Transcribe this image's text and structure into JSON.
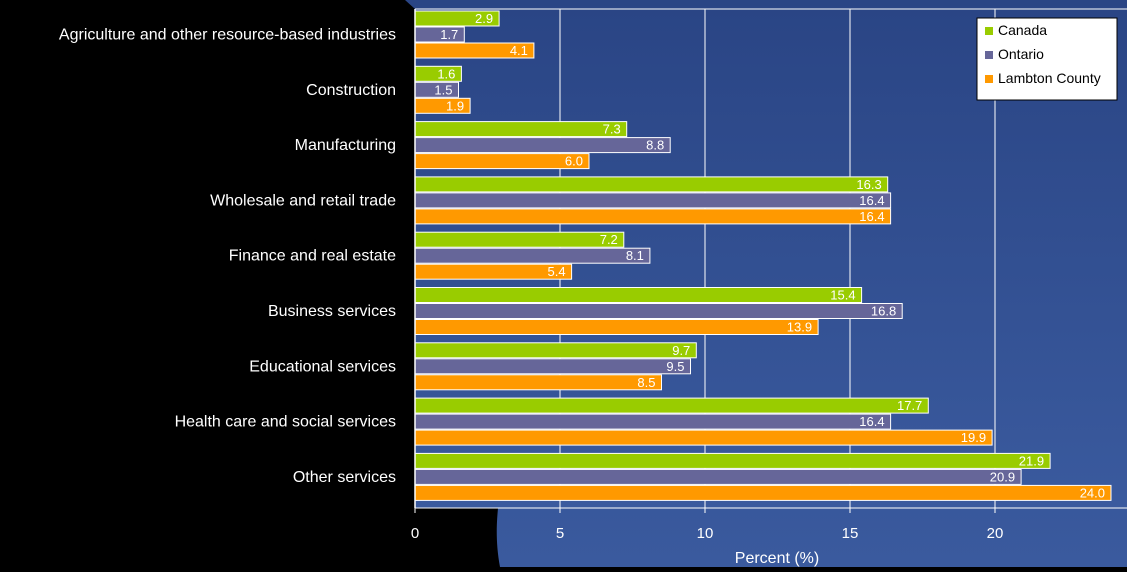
{
  "chart_data": {
    "type": "bar",
    "orientation": "horizontal",
    "title": "",
    "xlabel": "Percent (%)",
    "ylabel": "",
    "xlim": [
      0,
      24.5
    ],
    "x_ticks": [
      0,
      5,
      10,
      15,
      20
    ],
    "grid": true,
    "legend_position": "top-right",
    "categories": [
      "Agriculture and other resource-based industries",
      "Construction",
      "Manufacturing",
      "Wholesale and retail trade",
      "Finance and real estate",
      "Business services",
      "Educational services",
      "Health care and social services",
      "Other services"
    ],
    "series": [
      {
        "name": "Canada",
        "color": "#99CC00",
        "values": [
          2.9,
          1.6,
          7.3,
          16.3,
          7.2,
          15.4,
          9.7,
          17.7,
          21.9
        ]
      },
      {
        "name": "Ontario",
        "color": "#666699",
        "values": [
          1.7,
          1.5,
          8.8,
          16.4,
          8.1,
          16.8,
          9.5,
          16.4,
          20.9
        ]
      },
      {
        "name": "Lambton County",
        "color": "#FF9900",
        "values": [
          4.1,
          1.9,
          6.0,
          16.4,
          5.4,
          13.9,
          8.5,
          19.9,
          24.0
        ]
      }
    ],
    "value_labels": [
      [
        "2.9",
        "1.6",
        "7.3",
        "16.3",
        "7.2",
        "15.4",
        "9.7",
        "17.7",
        "21.9"
      ],
      [
        "1.7",
        "1.5",
        "8.8",
        "16.4",
        "8.1",
        "16.8",
        "9.5",
        "16.4",
        "20.9"
      ],
      [
        "4.1",
        "1.9",
        "6.0",
        "16.4",
        "5.4",
        "13.9",
        "8.5",
        "19.9",
        "24.0"
      ]
    ],
    "colors": {
      "plot_background": "#2E4A8C",
      "page_background": "#000000",
      "grid": "#FFFFFF",
      "text": "#FFFFFF"
    }
  }
}
